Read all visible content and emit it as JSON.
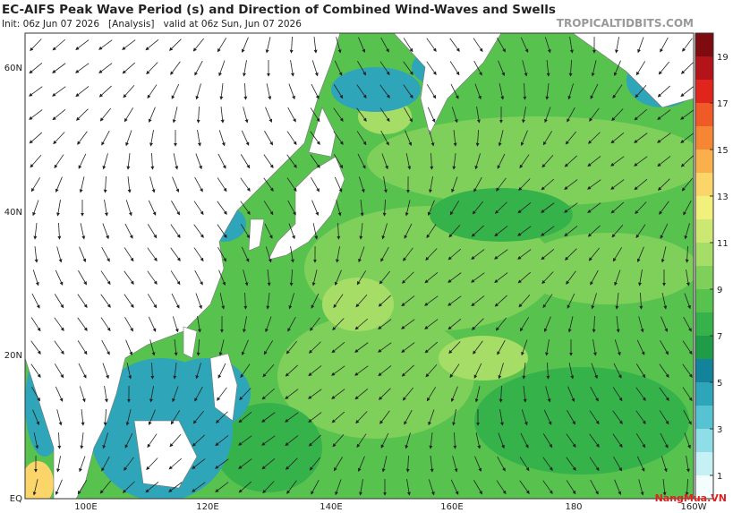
{
  "header": {
    "title": "EC-AIFS Peak Wave Period (s) and Direction of Combined Wind-Waves and Swells",
    "init": "Init: 06z Jun 07 2026   [Analysis]   valid at 06z Sun, Jun 07 2026",
    "site": "TROPICALTIDBITS.COM"
  },
  "map": {
    "lat_labels": [
      "60N",
      "40N",
      "20N",
      "EQ"
    ],
    "lon_labels": [
      "100E",
      "120E",
      "140E",
      "160E",
      "180",
      "160W"
    ]
  },
  "colorbar": {
    "labels": [
      1,
      3,
      5,
      7,
      9,
      11,
      13,
      15,
      17,
      19
    ],
    "colors": [
      "#f4fdfd",
      "#c6f1f4",
      "#8fdde6",
      "#56c3d3",
      "#2ea5b8",
      "#12839a",
      "#1f9c47",
      "#36b24a",
      "#58c24f",
      "#7fd05a",
      "#a6dd66",
      "#cce873",
      "#f2f07d",
      "#fbd56a",
      "#f9b04c",
      "#f58634",
      "#ef5a26",
      "#e0251c",
      "#b5131a",
      "#7d0b10"
    ]
  },
  "watermark": "NangMua.VN"
}
